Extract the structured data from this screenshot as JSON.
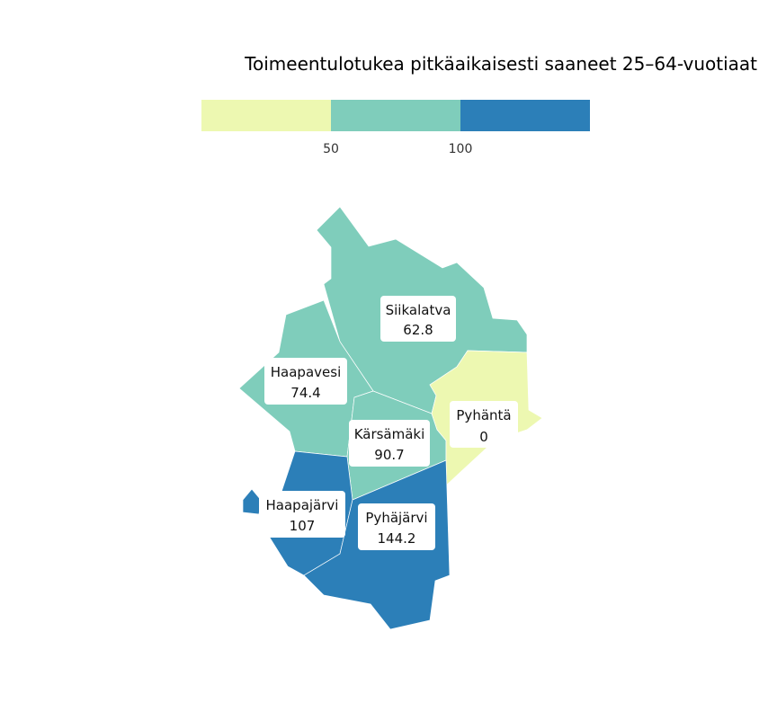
{
  "title": "Toimeentulotukea pitkäaikaisesti saaneet 25–64-vuotiaat",
  "legend": {
    "type": "binned",
    "thresholds": [
      50,
      100
    ],
    "tick_labels": [
      "50",
      "100"
    ],
    "colors": [
      "#edf8b1",
      "#7fcdbb",
      "#2c7fb8"
    ]
  },
  "regions": [
    {
      "name": "Siikalatva",
      "value": 62.8,
      "value_label": "62.8",
      "color": "#7fcdbb"
    },
    {
      "name": "Haapavesi",
      "value": 74.4,
      "value_label": "74.4",
      "color": "#7fcdbb"
    },
    {
      "name": "Kärsämäki",
      "value": 90.7,
      "value_label": "90.7",
      "color": "#7fcdbb"
    },
    {
      "name": "Pyhäntä",
      "value": 0,
      "value_label": "0",
      "color": "#edf8b1"
    },
    {
      "name": "Haapajärvi",
      "value": 107,
      "value_label": "107",
      "color": "#2c7fb8"
    },
    {
      "name": "Pyhäjärvi",
      "value": 144.2,
      "value_label": "144.2",
      "color": "#2c7fb8"
    }
  ]
}
